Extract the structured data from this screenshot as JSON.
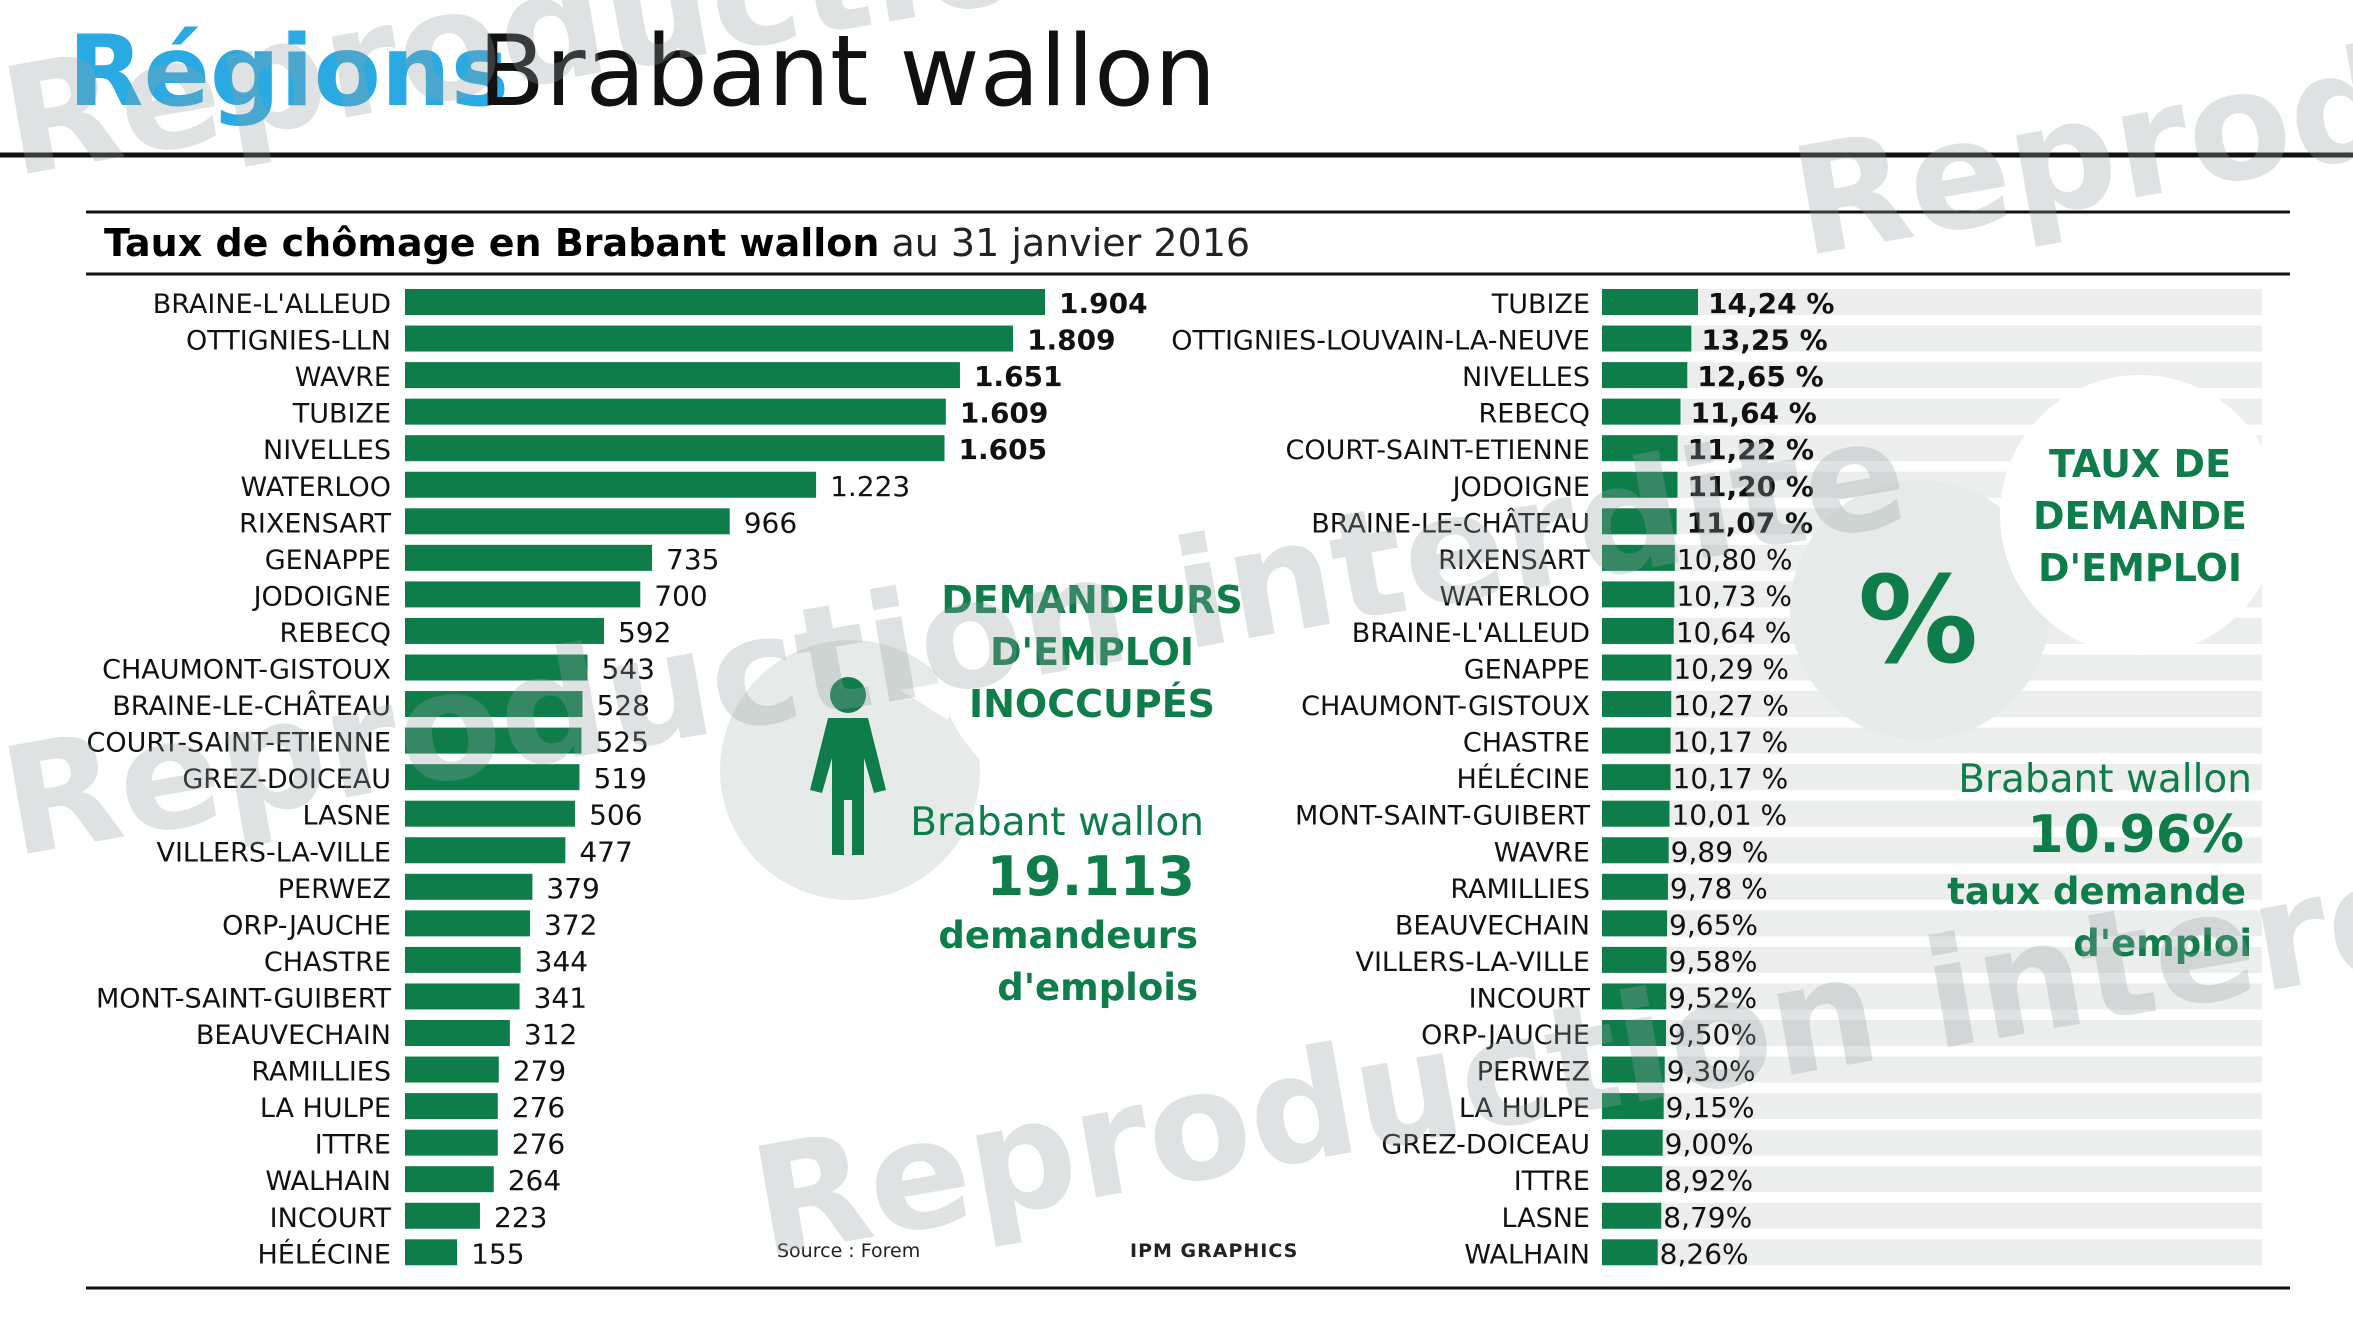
{
  "header": {
    "section": "Régions",
    "title": "Brabant wallon"
  },
  "subtitle": {
    "bold": "Taux de chômage en Brabant wallon",
    "rest": "au 31 janvier 2016"
  },
  "colors": {
    "bar": "#0e7d4a",
    "accent_blue": "#29aae2",
    "green_text": "#0e7d4a",
    "circle": "#e6ebe9",
    "stripe": "#eceeee"
  },
  "chart_data": [
    {
      "type": "bar",
      "orientation": "horizontal",
      "categories": [
        "BRAINE-L'ALLEUD",
        "OTTIGNIES-LLN",
        "WAVRE",
        "TUBIZE",
        "NIVELLES",
        "WATERLOO",
        "RIXENSART",
        "GENAPPE",
        "JODOIGNE",
        "REBECQ",
        "CHAUMONT-GISTOUX",
        "BRAINE-LE-CHÂTEAU",
        "COURT-SAINT-ETIENNE",
        "GREZ-DOICEAU",
        "LASNE",
        "VILLERS-LA-VILLE",
        "PERWEZ",
        "ORP-JAUCHE",
        "CHASTRE",
        "MONT-SAINT-GUIBERT",
        "BEAUVECHAIN",
        "RAMILLIES",
        "LA HULPE",
        "ITTRE",
        "WALHAIN",
        "INCOURT",
        "HÉLÉCINE"
      ],
      "values": [
        1904,
        1809,
        1651,
        1609,
        1605,
        1223,
        966,
        735,
        700,
        592,
        543,
        528,
        525,
        519,
        506,
        477,
        379,
        372,
        344,
        341,
        312,
        279,
        276,
        276,
        264,
        223,
        155
      ],
      "value_labels": [
        "1.904",
        "1.809",
        "1.651",
        "1.609",
        "1.605",
        "1.223",
        "966",
        "735",
        "700",
        "592",
        "543",
        "528",
        "525",
        "519",
        "506",
        "477",
        "379",
        "372",
        "344",
        "341",
        "312",
        "279",
        "276",
        "276",
        "264",
        "223",
        "155"
      ]
    },
    {
      "type": "bar",
      "orientation": "horizontal",
      "categories": [
        "TUBIZE",
        "OTTIGNIES-LOUVAIN-LA-NEUVE",
        "NIVELLES",
        "REBECQ",
        "COURT-SAINT-ETIENNE",
        "JODOIGNE",
        "BRAINE-LE-CHÂTEAU",
        "RIXENSART",
        "WATERLOO",
        "BRAINE-L'ALLEUD",
        "GENAPPE",
        "CHAUMONT-GISTOUX",
        "CHASTRE",
        "HÉLÉCINE",
        "MONT-SAINT-GUIBERT",
        "WAVRE",
        "RAMILLIES",
        "BEAUVECHAIN",
        "VILLERS-LA-VILLE",
        "INCOURT",
        "ORP-JAUCHE",
        "PERWEZ",
        "LA HULPE",
        "GREZ-DOICEAU",
        "ITTRE",
        "LASNE",
        "WALHAIN"
      ],
      "values": [
        14.24,
        13.25,
        12.65,
        11.64,
        11.22,
        11.2,
        11.07,
        10.8,
        10.73,
        10.64,
        10.29,
        10.27,
        10.17,
        10.17,
        10.01,
        9.89,
        9.78,
        9.65,
        9.58,
        9.52,
        9.5,
        9.3,
        9.15,
        9.0,
        8.92,
        8.79,
        8.26
      ],
      "value_labels": [
        "14,24 %",
        "13,25 %",
        "12,65 %",
        "11,64 %",
        "11,22 %",
        "11,20 %",
        "11,07 %",
        "10,80 %",
        "10,73 %",
        "10,64 %",
        "10,29 %",
        "10,27 %",
        "10,17 %",
        "10,17 %",
        "10,01 %",
        "9,89 %",
        "9,78 %",
        "9,65%",
        "9,58%",
        "9,52%",
        "9,50%",
        "9,30%",
        "9,15%",
        "9,00%",
        "8,92%",
        "8,79%",
        "8,26%"
      ]
    }
  ],
  "left_callout": {
    "bubble": [
      "DEMANDEURS",
      "D'EMPLOI",
      "INOCCUPÉS"
    ],
    "region": "Brabant wallon",
    "number": "19.113",
    "label": [
      "demandeurs",
      "d'emplois"
    ],
    "icon": "person-icon"
  },
  "right_callout": {
    "bubble": [
      "TAUX DE",
      "DEMANDE",
      "D'EMPLOI"
    ],
    "symbol": "%",
    "region": "Brabant wallon",
    "number": "10.96%",
    "label": [
      "taux demande",
      "d'emploi"
    ]
  },
  "footer": {
    "source": "Source : Forem",
    "credit": "IPM GRAPHICS"
  },
  "watermark": [
    "Reproduction interdite",
    "Reproduction interdite",
    "Reproduction interdite",
    "Reproduction interdite"
  ]
}
